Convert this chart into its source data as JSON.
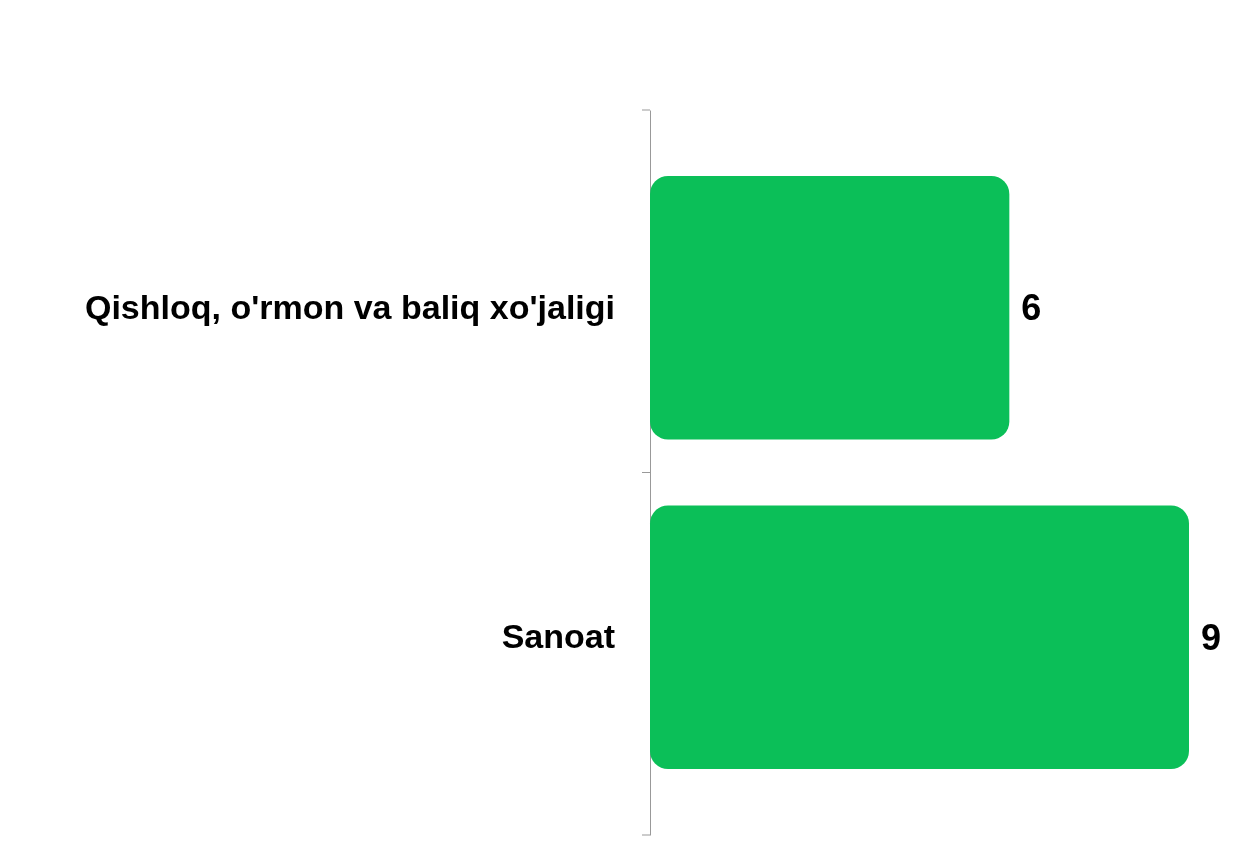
{
  "chart_data": {
    "type": "bar",
    "orientation": "horizontal",
    "categories": [
      "Qishloq, o'rmon va baliq xo'jaligi",
      "Sanoat"
    ],
    "values": [
      6,
      9
    ],
    "color": "#0bbf58",
    "data_labels": true
  }
}
